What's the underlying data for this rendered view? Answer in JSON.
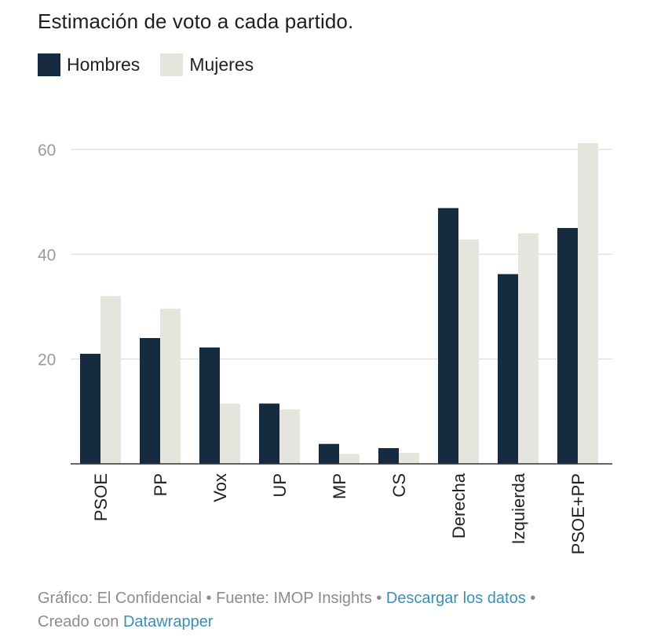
{
  "chart_data": {
    "type": "bar",
    "title": "Estimación de voto a cada partido.",
    "categories": [
      "PSOE",
      "PP",
      "Vox",
      "UP",
      "MP",
      "CS",
      "Derecha",
      "Izquierda",
      "PSOE+PP"
    ],
    "series": [
      {
        "name": "Hombres",
        "color": "#172b40",
        "values": [
          21.0,
          24.0,
          22.2,
          11.5,
          3.8,
          3.0,
          48.8,
          36.2,
          45.0
        ]
      },
      {
        "name": "Mujeres",
        "color": "#e6e5dd",
        "values": [
          32.0,
          29.6,
          11.5,
          10.4,
          1.9,
          2.1,
          42.8,
          44.0,
          61.2
        ]
      }
    ],
    "xlabel": "",
    "ylabel": "",
    "ylim": [
      0,
      60
    ],
    "yticks": [
      20,
      40,
      60
    ],
    "grid": true,
    "legend": "top-left"
  },
  "footer": {
    "source_prefix": "Gráfico: El Confidencial • Fuente: IMOP Insights • ",
    "download_link": "Descargar los datos",
    "sep": " •",
    "created_prefix": "Creado con ",
    "tool_link": "Datawrapper"
  }
}
